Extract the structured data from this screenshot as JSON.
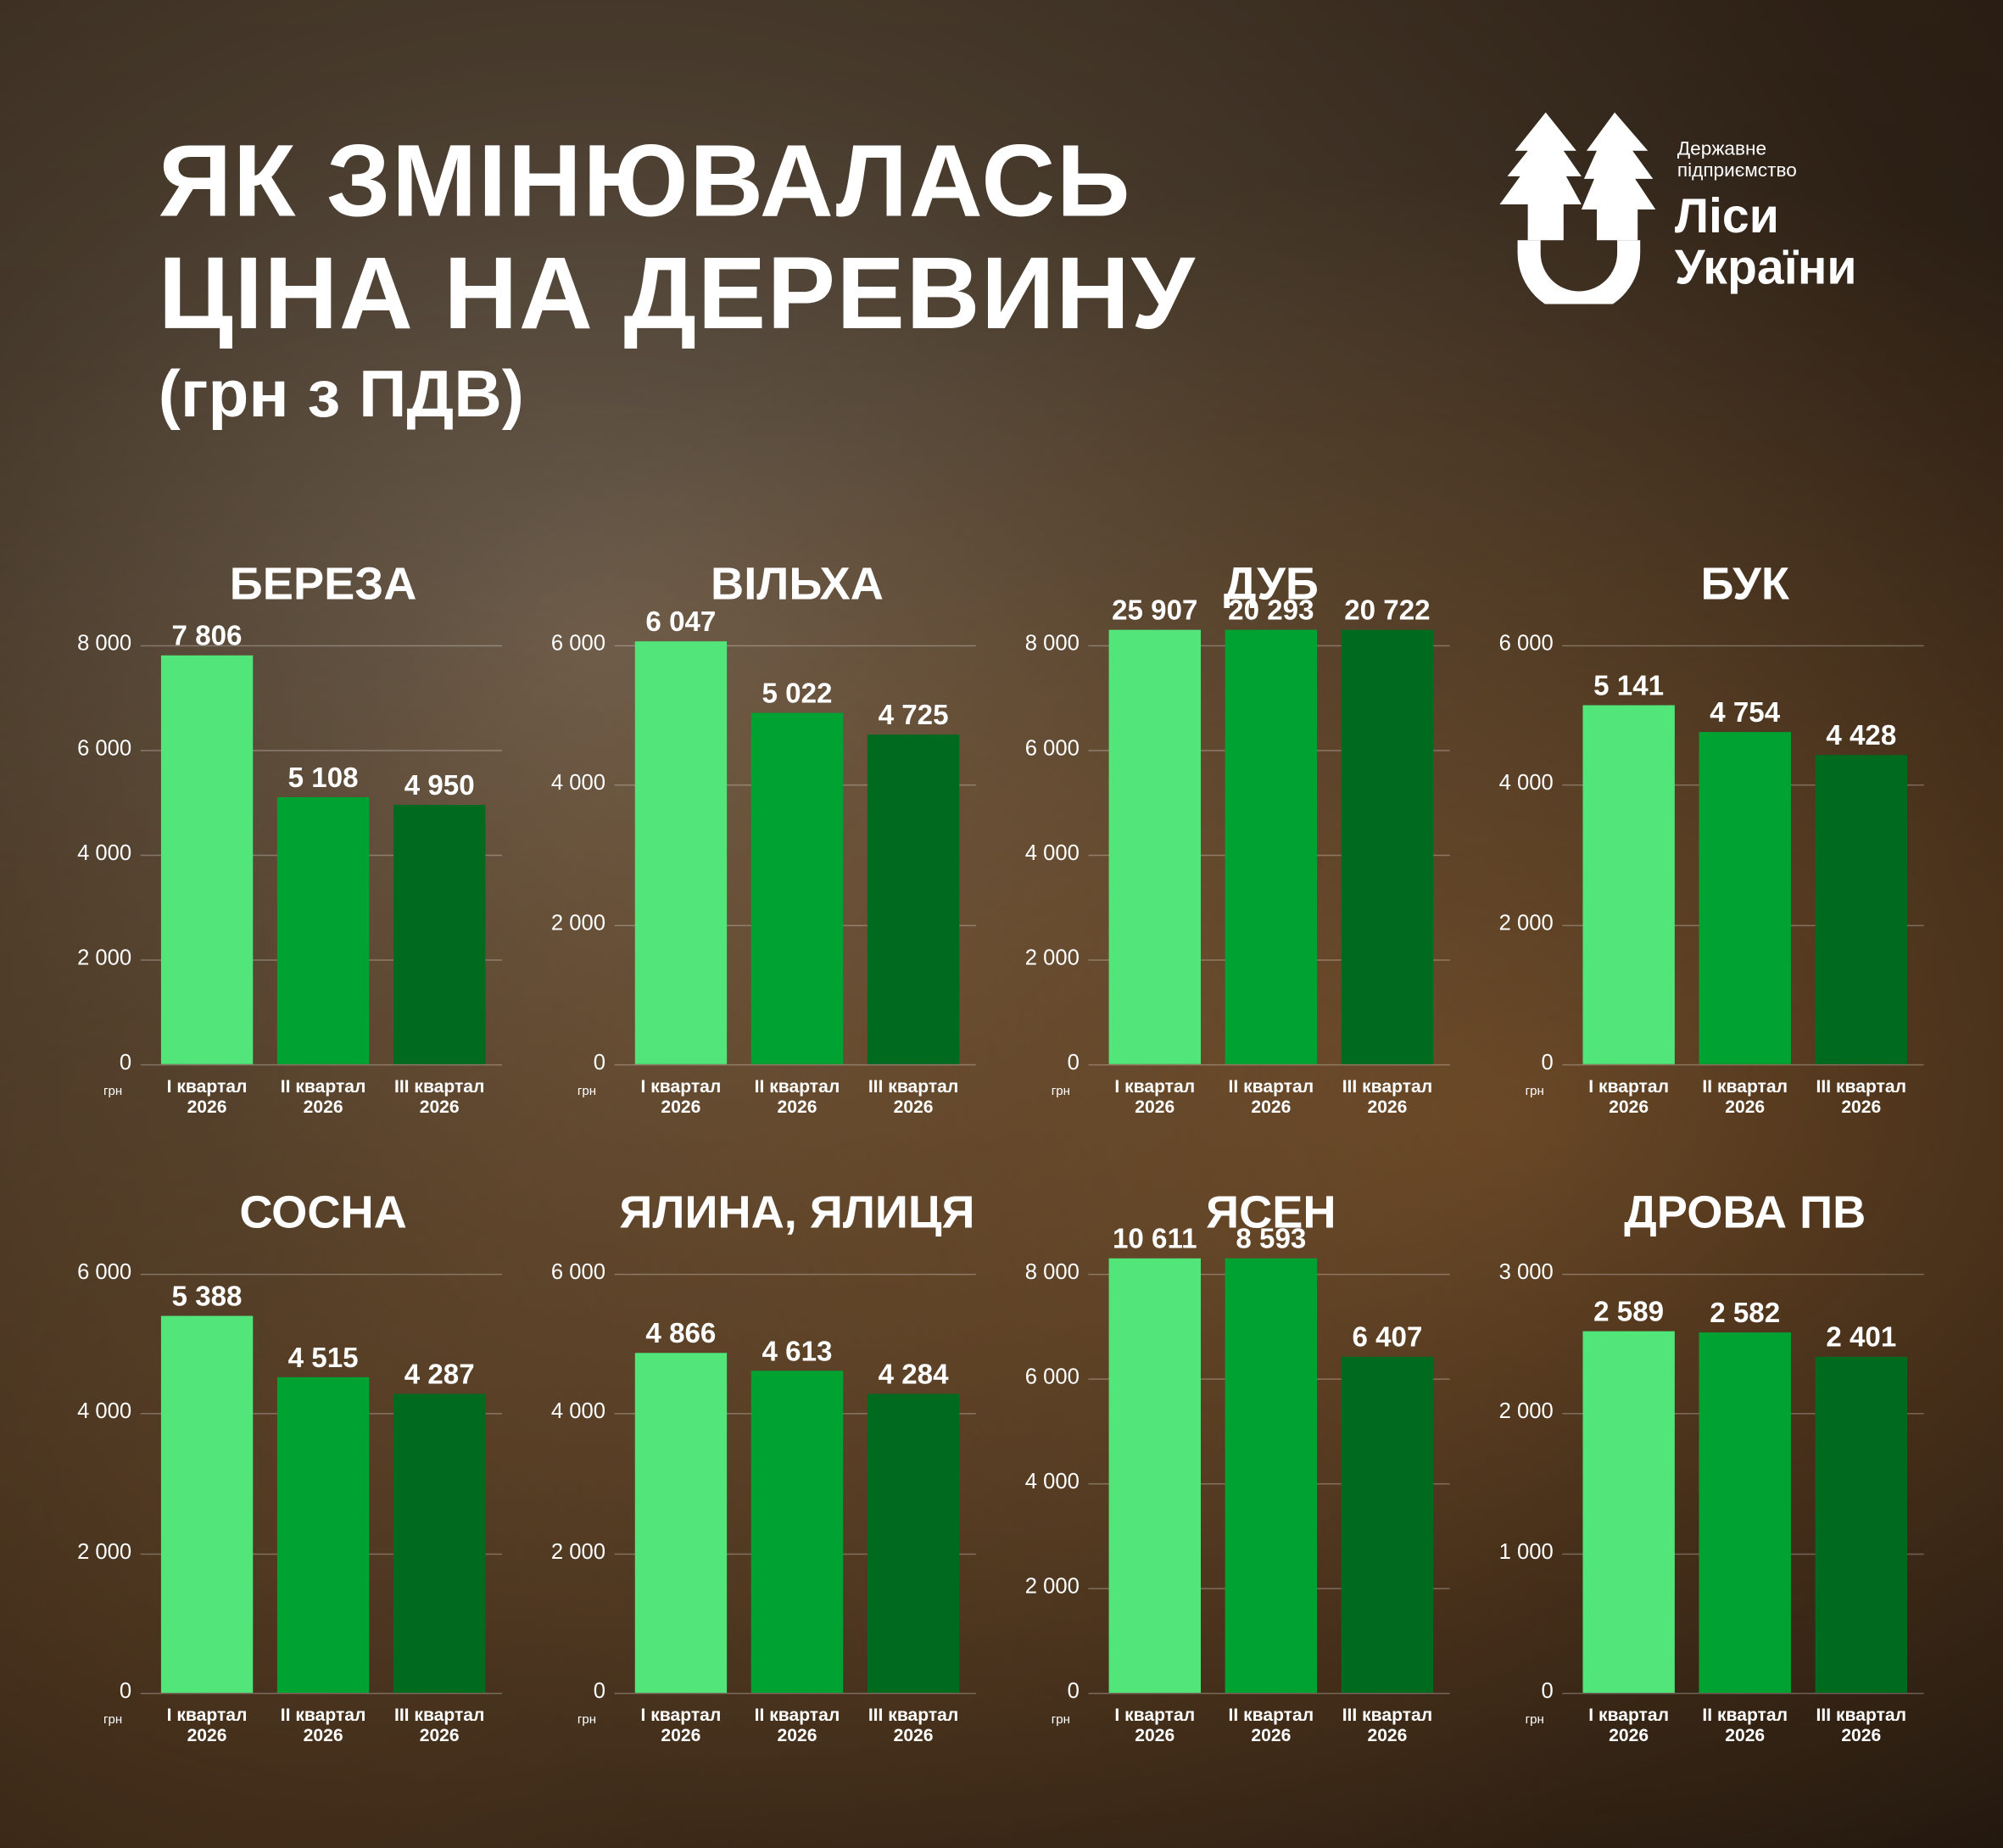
{
  "header": {
    "title": [
      "ЯК ЗМІНЮВАЛАСЬ",
      "ЦІНА НА ДЕРЕВИНУ"
    ],
    "subtitle": "(грн з ПДВ)"
  },
  "logo": {
    "small": [
      "Державне",
      "підприємство"
    ],
    "big": [
      "Ліси",
      "України"
    ]
  },
  "chart_data": [
    {
      "type": "bar",
      "title": "БЕРЕЗА",
      "categories": [
        "I квартал\n2026",
        "II квартал\n2026",
        "III квартал\n2026"
      ],
      "values": [
        7806,
        5108,
        4950
      ],
      "value_labels": [
        "7 806",
        "5 108",
        "4 950"
      ],
      "colors": [
        "#52e57a",
        "#00a332",
        "#006b1f"
      ],
      "ylabel": "грн",
      "ylim": [
        0,
        8000
      ],
      "yticks": [
        0,
        {
          "value": 2000,
          "label": "2 000"
        },
        {
          "value": 4000,
          "label": "4 000"
        },
        {
          "value": 6000,
          "label": "6 000"
        },
        {
          "value": 8000,
          "label": "8 000"
        }
      ]
    },
    {
      "type": "bar",
      "title": "ВІЛЬХА",
      "categories": [
        "I квартал\n2026",
        "II квартал\n2026",
        "III квартал\n2026"
      ],
      "values": [
        6047,
        5022,
        4725
      ],
      "value_labels": [
        "6 047",
        "5 022",
        "4 725"
      ],
      "colors": [
        "#52e57a",
        "#00a332",
        "#006b1f"
      ],
      "ylabel": "грн",
      "ylim": [
        0,
        6000
      ],
      "yticks": [
        0,
        {
          "value": 2000,
          "label": "2 000"
        },
        {
          "value": 4000,
          "label": "4 000"
        },
        {
          "value": 6000,
          "label": "6 000"
        }
      ]
    },
    {
      "type": "bar",
      "title": "ДУБ",
      "categories": [
        "I квартал\n2026",
        "II квартал\n2026",
        "III квартал\n2026"
      ],
      "values": [
        25907,
        20293,
        20722
      ],
      "value_labels": [
        "25 907",
        "20 293",
        "20 722"
      ],
      "colors": [
        "#52e57a",
        "#00a332",
        "#006b1f"
      ],
      "ylabel": "грн",
      "ylim": [
        0,
        8000
      ],
      "yticks": [
        0,
        {
          "value": 2000,
          "label": "2 000"
        },
        {
          "value": 4000,
          "label": "4 000"
        },
        {
          "value": 6000,
          "label": "6 000"
        },
        {
          "value": 8000,
          "label": "8 000"
        }
      ]
    },
    {
      "type": "bar",
      "title": "БУК",
      "categories": [
        "I квартал\n2026",
        "II квартал\n2026",
        "III квартал\n2026"
      ],
      "values": [
        5141,
        4754,
        4428
      ],
      "value_labels": [
        "5 141",
        "4 754",
        "4 428"
      ],
      "colors": [
        "#52e57a",
        "#00a332",
        "#006b1f"
      ],
      "ylabel": "грн",
      "ylim": [
        0,
        6000
      ],
      "yticks": [
        0,
        {
          "value": 2000,
          "label": "2 000"
        },
        {
          "value": 4000,
          "label": "4 000"
        },
        {
          "value": 6000,
          "label": "6 000"
        }
      ]
    },
    {
      "type": "bar",
      "title": "СОСНА",
      "categories": [
        "I квартал\n2026",
        "II квартал\n2026",
        "III квартал\n2026"
      ],
      "values": [
        5388,
        4515,
        4287
      ],
      "value_labels": [
        "5 388",
        "4 515",
        "4 287"
      ],
      "colors": [
        "#52e57a",
        "#00a332",
        "#006b1f"
      ],
      "ylabel": "грн",
      "ylim": [
        0,
        6000
      ],
      "yticks": [
        0,
        {
          "value": 2000,
          "label": "2 000"
        },
        {
          "value": 4000,
          "label": "4 000"
        },
        {
          "value": 6000,
          "label": "6 000"
        }
      ]
    },
    {
      "type": "bar",
      "title": "ЯЛИНА, ЯЛИЦЯ",
      "categories": [
        "I квартал\n2026",
        "II квартал\n2026",
        "III квартал\n2026"
      ],
      "values": [
        4866,
        4613,
        4284
      ],
      "value_labels": [
        "4 866",
        "4 613",
        "4 284"
      ],
      "colors": [
        "#52e57a",
        "#00a332",
        "#006b1f"
      ],
      "ylabel": "грн",
      "ylim": [
        0,
        6000
      ],
      "yticks": [
        0,
        {
          "value": 2000,
          "label": "2 000"
        },
        {
          "value": 4000,
          "label": "4 000"
        },
        {
          "value": 6000,
          "label": "6 000"
        }
      ]
    },
    {
      "type": "bar",
      "title": "ЯСЕН",
      "categories": [
        "I квартал\n2026",
        "II квартал\n2026",
        "III квартал\n2026"
      ],
      "values": [
        10611,
        8593,
        6407
      ],
      "value_labels": [
        "10 611",
        "8 593",
        "6 407"
      ],
      "colors": [
        "#52e57a",
        "#00a332",
        "#006b1f"
      ],
      "ylabel": "грн",
      "ylim": [
        0,
        8000
      ],
      "yticks": [
        0,
        {
          "value": 2000,
          "label": "2 000"
        },
        {
          "value": 4000,
          "label": "4 000"
        },
        {
          "value": 6000,
          "label": "6 000"
        },
        {
          "value": 8000,
          "label": "8 000"
        }
      ]
    },
    {
      "type": "bar",
      "title": "ДРОВА ПВ",
      "categories": [
        "I квартал\n2026",
        "II квартал\n2026",
        "III квартал\n2026"
      ],
      "values": [
        2589,
        2582,
        2401
      ],
      "value_labels": [
        "2 589",
        "2 582",
        "2 401"
      ],
      "colors": [
        "#52e57a",
        "#00a332",
        "#006b1f"
      ],
      "ylabel": "грн",
      "ylim": [
        0,
        3000
      ],
      "yticks": [
        0,
        {
          "value": 1000,
          "label": "1 000"
        },
        {
          "value": 2000,
          "label": "2 000"
        },
        {
          "value": 3000,
          "label": "3 000"
        }
      ]
    }
  ]
}
